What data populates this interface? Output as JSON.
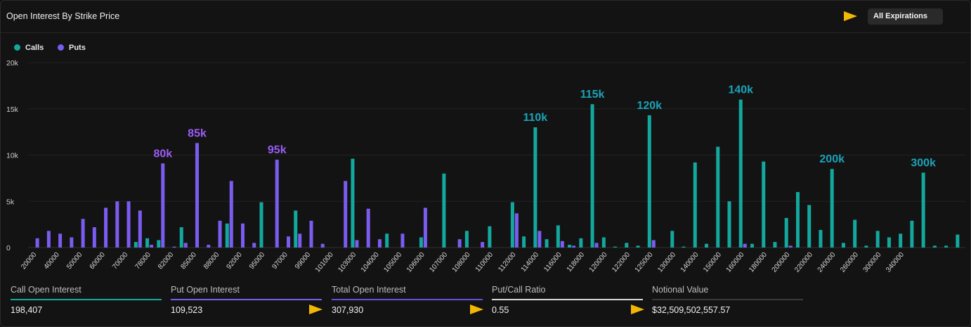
{
  "header": {
    "title": "Open Interest By Strike Price",
    "expiration_select": "All Expirations"
  },
  "icons": [
    "arrow-icon"
  ],
  "colors": {
    "calls": "#13a89e",
    "puts": "#7b5cf0",
    "calls_annotation": "#1aa3b8",
    "puts_annotation": "#9b5cf6",
    "arrow": "#f2b705",
    "total": "#6a4de0",
    "ratio": "#d9d9d9",
    "notional": "#3a3a3a"
  },
  "legend": [
    {
      "label": "Calls",
      "color": "#13a89e"
    },
    {
      "label": "Puts",
      "color": "#7b5cf0"
    }
  ],
  "chart_data": {
    "type": "bar",
    "ylim": [
      0,
      20000
    ],
    "yticks": [
      "0",
      "5k",
      "10k",
      "15k",
      "20k"
    ],
    "grid": true,
    "legend_position": "top-left",
    "x_tick_labels": [
      "20000",
      "40000",
      "50000",
      "60000",
      "70000",
      "78000",
      "82000",
      "85000",
      "88000",
      "92000",
      "95000",
      "97000",
      "99000",
      "101000",
      "103000",
      "104000",
      "105000",
      "106000",
      "107000",
      "108000",
      "110000",
      "112000",
      "114000",
      "116000",
      "118000",
      "120000",
      "122000",
      "125000",
      "130000",
      "140000",
      "150000",
      "160000",
      "180000",
      "200000",
      "220000",
      "240000",
      "260000",
      "300000",
      "340000"
    ],
    "series": [
      {
        "name": "Calls",
        "values": [
          0,
          0,
          0,
          0,
          0,
          0,
          0,
          0,
          0,
          600,
          1000,
          800,
          0,
          2200,
          0,
          0,
          0,
          2600,
          0,
          0,
          4900,
          0,
          0,
          4000,
          0,
          0,
          0,
          0,
          9600,
          0,
          0,
          1500,
          0,
          0,
          1100,
          0,
          8000,
          0,
          1800,
          0,
          2300,
          0,
          4900,
          1200,
          13000,
          900,
          2400,
          300,
          1000,
          15500,
          1100,
          100,
          500,
          200,
          14300,
          0,
          1800,
          100,
          9200,
          400,
          10900,
          5000,
          16000,
          400,
          9300,
          600,
          3200,
          6000,
          4600,
          1900,
          8500,
          500,
          3000,
          200,
          1800,
          1100,
          1500,
          2900,
          8100,
          200,
          200,
          1400
        ]
      },
      {
        "name": "Puts",
        "values": [
          1000,
          1800,
          1500,
          1100,
          3100,
          2200,
          4300,
          5000,
          5000,
          4000,
          300,
          9100,
          100,
          500,
          11300,
          300,
          2900,
          7200,
          2600,
          500,
          0,
          9500,
          1200,
          1500,
          2900,
          400,
          0,
          7200,
          800,
          4200,
          900,
          0,
          1500,
          0,
          4300,
          0,
          0,
          900,
          0,
          600,
          0,
          0,
          3700,
          0,
          1800,
          0,
          700,
          200,
          0,
          500,
          0,
          0,
          0,
          0,
          800,
          0,
          0,
          0,
          0,
          0,
          0,
          0,
          400,
          0,
          0,
          0,
          200,
          0,
          0,
          0,
          0,
          0,
          0,
          0,
          0,
          0,
          0,
          0,
          0,
          0,
          0,
          0
        ]
      },
      {
        "name": "Total Open Interest"
      },
      {
        "name": "Put/Call Ratio"
      },
      {
        "name": "Notional Value"
      }
    ],
    "annotations": [
      {
        "text": "80k",
        "series": "Puts",
        "index": 11
      },
      {
        "text": "85k",
        "series": "Puts",
        "index": 14
      },
      {
        "text": "95k",
        "series": "Puts",
        "index": 21
      },
      {
        "text": "110k",
        "series": "Calls",
        "index": 44
      },
      {
        "text": "115k",
        "series": "Calls",
        "index": 49
      },
      {
        "text": "120k",
        "series": "Calls",
        "index": 54
      },
      {
        "text": "140k",
        "series": "Calls",
        "index": 62
      },
      {
        "text": "200k",
        "series": "Calls",
        "index": 70
      },
      {
        "text": "300k",
        "series": "Calls",
        "index": 78
      }
    ]
  },
  "footer": [
    {
      "label": "Call Open Interest",
      "value": "198,407",
      "line_color": "#13a89e",
      "arrow": false
    },
    {
      "label": "Put Open Interest",
      "value": "109,523",
      "line_color": "#7b5cf0",
      "arrow": true
    },
    {
      "label": "Total Open Interest",
      "value": "307,930",
      "line_color": "#6a4de0",
      "arrow": true
    },
    {
      "label": "Put/Call Ratio",
      "value": "0.55",
      "line_color": "#d9d9d9",
      "arrow": true
    },
    {
      "label": "Notional Value",
      "value": "$32,509,502,557.57",
      "line_color": "#3a3a3a",
      "arrow": false
    }
  ]
}
